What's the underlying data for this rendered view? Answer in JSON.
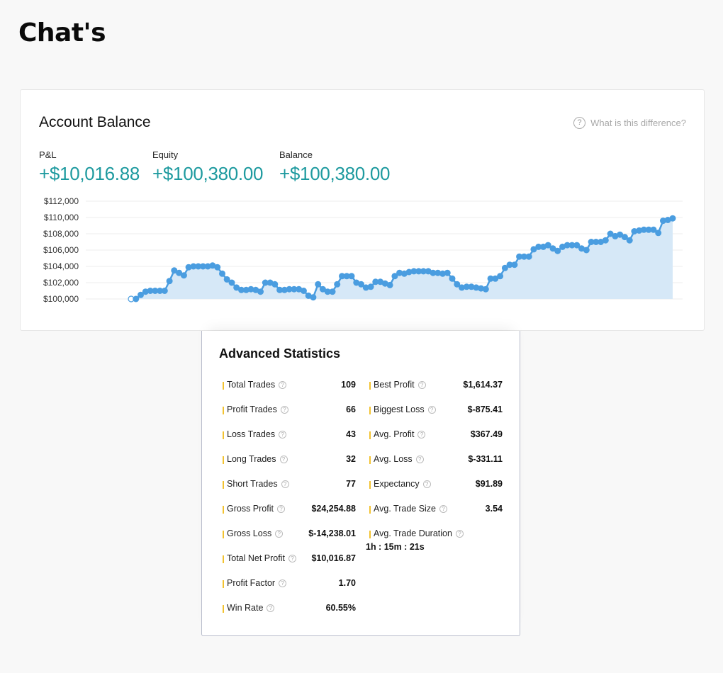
{
  "page": {
    "heading": "Chat's"
  },
  "account_balance": {
    "title": "Account Balance",
    "help_text": "What is this difference?",
    "metrics": [
      {
        "label": "P&L",
        "value": "+$10,016.88"
      },
      {
        "label": "Equity",
        "value": "+$100,380.00"
      },
      {
        "label": "Balance",
        "value": "+$100,380.00"
      }
    ],
    "accent_color": "#1e9a9f"
  },
  "chart_data": {
    "type": "area",
    "title": "",
    "xlabel": "",
    "ylabel": "",
    "y_tick_labels": [
      "$112,000",
      "$110,000",
      "$108,000",
      "$106,000",
      "$104,000",
      "$102,000",
      "$100,000"
    ],
    "ylim": [
      100000,
      112000
    ],
    "grid": true,
    "legend": "none",
    "line_color": "#4a9de0",
    "fill_color": "#d6e8f7",
    "series": [
      {
        "values": [
          100000,
          100000,
          100500,
          100900,
          101000,
          101000,
          101000,
          101000,
          102200,
          103500,
          103200,
          102900,
          103900,
          104000,
          104000,
          104000,
          104000,
          104100,
          103900,
          103100,
          102400,
          102000,
          101400,
          101100,
          101100,
          101200,
          101100,
          100900,
          102000,
          102000,
          101800,
          101100,
          101100,
          101200,
          101200,
          101200,
          101000,
          100400,
          100200,
          101800,
          101200,
          100900,
          100900,
          101800,
          102800,
          102800,
          102800,
          102000,
          101800,
          101400,
          101500,
          102100,
          102100,
          101900,
          101700,
          102800,
          103200,
          103100,
          103300,
          103400,
          103400,
          103400,
          103400,
          103200,
          103200,
          103100,
          103200,
          102500,
          101800,
          101400,
          101500,
          101500,
          101400,
          101300,
          101200,
          102500,
          102500,
          102800,
          103800,
          104200,
          104200,
          105200,
          105200,
          105200,
          106100,
          106400,
          106400,
          106600,
          106200,
          105900,
          106400,
          106600,
          106600,
          106600,
          106200,
          106000,
          107000,
          107000,
          107000,
          107200,
          108000,
          107700,
          107900,
          107600,
          107200,
          108300,
          108400,
          108500,
          108500,
          108500,
          108100,
          109600,
          109700,
          109900
        ]
      }
    ]
  },
  "advanced_statistics": {
    "title": "Advanced Statistics",
    "left": [
      {
        "label": "Total Trades",
        "value": "109"
      },
      {
        "label": "Profit Trades",
        "value": "66"
      },
      {
        "label": "Loss Trades",
        "value": "43"
      },
      {
        "label": "Long Trades",
        "value": "32"
      },
      {
        "label": "Short Trades",
        "value": "77"
      },
      {
        "label": "Gross Profit",
        "value": "$24,254.88"
      },
      {
        "label": "Gross Loss",
        "value": "$-14,238.01"
      },
      {
        "label": "Total Net Profit",
        "value": "$10,016.87"
      },
      {
        "label": "Profit Factor",
        "value": "1.70"
      },
      {
        "label": "Win Rate",
        "value": "60.55%"
      }
    ],
    "right": [
      {
        "label": "Best Profit",
        "value": "$1,614.37"
      },
      {
        "label": "Biggest Loss",
        "value": "$-875.41"
      },
      {
        "label": "Avg. Profit",
        "value": "$367.49"
      },
      {
        "label": "Avg. Loss",
        "value": "$-331.11"
      },
      {
        "label": "Expectancy",
        "value": "$91.89"
      },
      {
        "label": "Avg. Trade Size",
        "value": "3.54"
      },
      {
        "label": "Avg. Trade Duration",
        "value": ""
      }
    ],
    "duration_value": "1h : 15m : 21s",
    "indicator_color": "#f2c230"
  }
}
